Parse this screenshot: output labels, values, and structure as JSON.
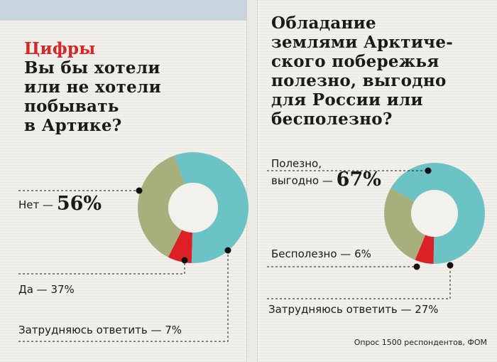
{
  "left": {
    "kicker": "Цифры",
    "question_lines": [
      "Вы бы хотели",
      "или не хотели",
      "побывать",
      "в Артике?"
    ],
    "labels": {
      "net_text": "Нет",
      "net_value": "56%",
      "da": "Да — 37%",
      "zatr": "Затрудняюсь ответить — 7%"
    }
  },
  "right": {
    "question_lines": [
      "Обладание",
      "землями Арктиче-",
      "ского побережья",
      "полезно, выгодно",
      "для России или",
      "бесполезно?"
    ],
    "labels": {
      "polezno_line1": "Полезно,",
      "polezno_line2": "выгодно",
      "polezno_value": "67%",
      "bespolezno": "Бесполезно — 6%",
      "zatr": "Затрудняюсь ответить — 27%"
    }
  },
  "source": "Опрос 1500 респондентов, ФОМ",
  "colors": {
    "teal": "#6cc3c6",
    "olive": "#a7b07d",
    "red": "#dd1f26",
    "hole": "#f2f1ec",
    "kicker": "#d7252a",
    "band": "#c8d4de"
  },
  "chart_data": [
    {
      "type": "pie",
      "title": "Вы бы хотели или не хотели побывать в Артике?",
      "categories": [
        "Нет",
        "Да",
        "Затрудняюсь ответить"
      ],
      "values": [
        56,
        37,
        7
      ],
      "unit": "%"
    },
    {
      "type": "pie",
      "title": "Обладание землями Арктического побережья полезно, выгодно для России или бесполезно?",
      "categories": [
        "Полезно, выгодно",
        "Бесполезно",
        "Затрудняюсь ответить"
      ],
      "values": [
        67,
        6,
        27
      ],
      "unit": "%"
    }
  ]
}
